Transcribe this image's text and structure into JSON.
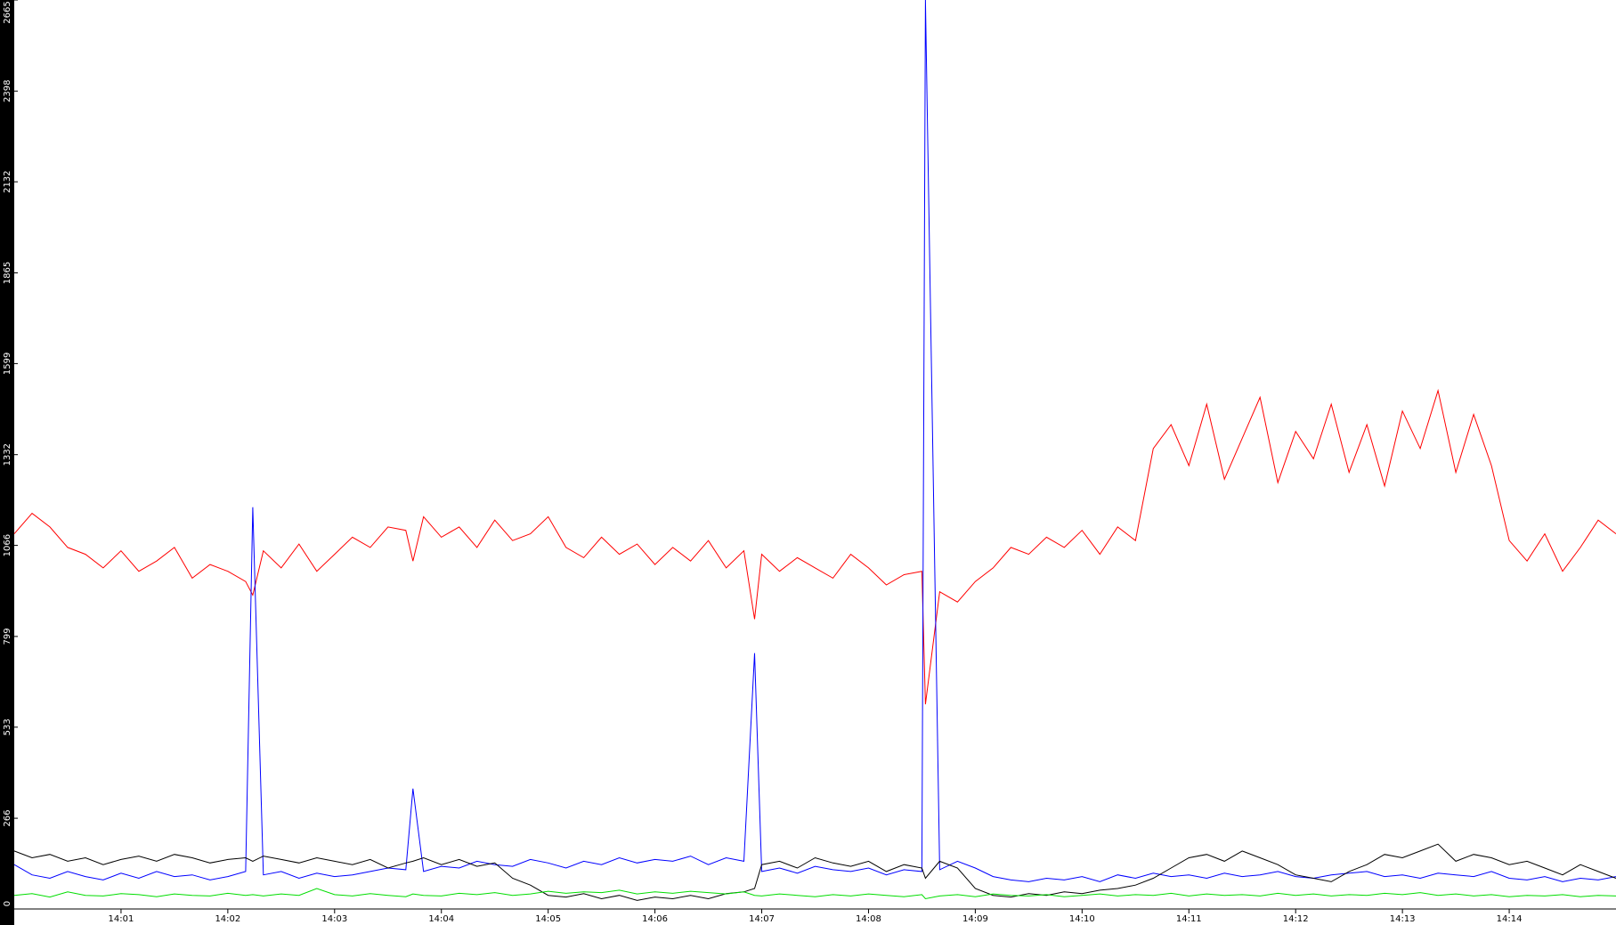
{
  "chart_data": {
    "type": "line",
    "x": [
      0,
      10,
      20,
      30,
      40,
      50,
      60,
      70,
      80,
      90,
      100,
      110,
      120,
      130,
      134,
      140,
      150,
      160,
      170,
      180,
      190,
      200,
      210,
      220,
      224,
      230,
      240,
      250,
      260,
      270,
      280,
      290,
      300,
      310,
      320,
      330,
      340,
      350,
      360,
      370,
      380,
      390,
      400,
      410,
      416,
      420,
      430,
      440,
      450,
      460,
      470,
      480,
      490,
      500,
      510,
      512,
      520,
      530,
      540,
      550,
      560,
      570,
      580,
      590,
      600,
      610,
      620,
      630,
      640,
      650,
      660,
      670,
      680,
      690,
      700,
      710,
      720,
      730,
      740,
      750,
      760,
      770,
      780,
      790,
      800,
      810,
      820,
      830,
      840,
      850,
      860,
      870,
      880,
      890,
      900
    ],
    "xlim": [
      0,
      900
    ],
    "xticks": [
      {
        "value": 60,
        "label": "14:01"
      },
      {
        "value": 120,
        "label": "14:02"
      },
      {
        "value": 180,
        "label": "14:03"
      },
      {
        "value": 240,
        "label": "14:04"
      },
      {
        "value": 300,
        "label": "14:05"
      },
      {
        "value": 360,
        "label": "14:06"
      },
      {
        "value": 420,
        "label": "14:07"
      },
      {
        "value": 480,
        "label": "14:08"
      },
      {
        "value": 540,
        "label": "14:09"
      },
      {
        "value": 600,
        "label": "14:10"
      },
      {
        "value": 660,
        "label": "14:11"
      },
      {
        "value": 720,
        "label": "14:12"
      },
      {
        "value": 780,
        "label": "14:13"
      },
      {
        "value": 840,
        "label": "14:14"
      }
    ],
    "ylim": [
      0,
      2665
    ],
    "yticks": [
      0,
      266,
      533,
      799,
      1066,
      1332,
      1599,
      1865,
      2132,
      2398,
      2665
    ],
    "series": [
      {
        "color": "#ff0000",
        "values": [
          1100,
          1160,
          1120,
          1060,
          1040,
          1000,
          1050,
          990,
          1020,
          1060,
          970,
          1010,
          990,
          960,
          920,
          1050,
          1000,
          1070,
          990,
          1040,
          1090,
          1060,
          1120,
          1110,
          1020,
          1150,
          1090,
          1120,
          1060,
          1140,
          1080,
          1100,
          1150,
          1060,
          1030,
          1090,
          1040,
          1070,
          1010,
          1060,
          1020,
          1080,
          1000,
          1050,
          850,
          1040,
          990,
          1030,
          1000,
          970,
          1040,
          1000,
          950,
          980,
          990,
          600,
          930,
          900,
          960,
          1000,
          1060,
          1040,
          1090,
          1060,
          1110,
          1040,
          1120,
          1080,
          1350,
          1420,
          1300,
          1480,
          1260,
          1380,
          1500,
          1250,
          1400,
          1320,
          1480,
          1280,
          1420,
          1240,
          1460,
          1350,
          1520,
          1280,
          1450,
          1300,
          1080,
          1020,
          1100,
          990,
          1060,
          1140,
          1100
        ]
      },
      {
        "color": "#0000ff",
        "values": [
          130,
          100,
          90,
          110,
          95,
          85,
          105,
          90,
          110,
          95,
          100,
          85,
          95,
          110,
          1178,
          100,
          110,
          90,
          105,
          95,
          100,
          110,
          120,
          115,
          353,
          110,
          125,
          120,
          140,
          130,
          125,
          145,
          135,
          120,
          140,
          130,
          150,
          135,
          145,
          140,
          155,
          130,
          150,
          140,
          750,
          110,
          120,
          105,
          125,
          115,
          110,
          120,
          100,
          115,
          110,
          2665,
          115,
          140,
          120,
          95,
          85,
          80,
          90,
          85,
          95,
          80,
          100,
          90,
          105,
          95,
          100,
          90,
          105,
          95,
          100,
          110,
          95,
          90,
          100,
          105,
          110,
          95,
          100,
          90,
          105,
          100,
          95,
          110,
          90,
          85,
          95,
          80,
          90,
          85,
          95
        ]
      },
      {
        "color": "#000000",
        "values": [
          170,
          150,
          160,
          140,
          150,
          130,
          145,
          155,
          140,
          160,
          150,
          135,
          145,
          150,
          140,
          155,
          145,
          135,
          150,
          140,
          130,
          145,
          120,
          135,
          140,
          150,
          130,
          145,
          125,
          135,
          90,
          70,
          40,
          35,
          45,
          30,
          40,
          25,
          35,
          30,
          40,
          30,
          45,
          50,
          60,
          130,
          140,
          120,
          150,
          135,
          125,
          140,
          110,
          130,
          120,
          90,
          140,
          120,
          60,
          40,
          35,
          45,
          40,
          50,
          45,
          55,
          60,
          70,
          90,
          120,
          150,
          160,
          140,
          170,
          150,
          130,
          100,
          90,
          80,
          110,
          130,
          160,
          150,
          170,
          190,
          140,
          160,
          150,
          130,
          140,
          120,
          100,
          130,
          110,
          90
        ]
      },
      {
        "color": "#00dd00",
        "values": [
          40,
          45,
          35,
          50,
          40,
          38,
          45,
          42,
          36,
          44,
          40,
          38,
          46,
          40,
          42,
          38,
          44,
          40,
          60,
          42,
          38,
          45,
          40,
          36,
          44,
          40,
          38,
          46,
          42,
          48,
          40,
          44,
          52,
          46,
          50,
          48,
          55,
          44,
          50,
          46,
          52,
          48,
          44,
          50,
          40,
          38,
          44,
          40,
          36,
          42,
          38,
          44,
          40,
          36,
          42,
          30,
          38,
          42,
          36,
          44,
          40,
          38,
          42,
          36,
          40,
          44,
          38,
          42,
          40,
          46,
          38,
          44,
          40,
          42,
          38,
          46,
          40,
          44,
          38,
          42,
          40,
          46,
          42,
          48,
          40,
          44,
          38,
          42,
          36,
          40,
          38,
          42,
          36,
          40,
          38
        ]
      }
    ]
  }
}
